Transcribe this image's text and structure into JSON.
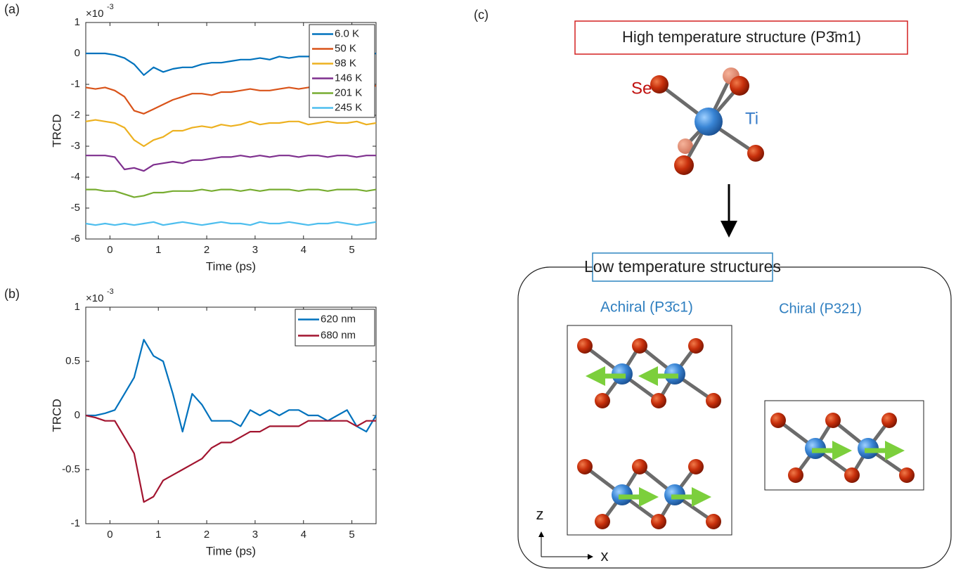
{
  "chart_data": [
    {
      "type": "line",
      "panel_label": "(a)",
      "xlabel": "Time (ps)",
      "ylabel": "TRCD",
      "y_multiplier": "×10",
      "y_multiplier_exponent": "-3",
      "x": [
        -0.5,
        -0.3,
        -0.1,
        0.1,
        0.3,
        0.5,
        0.7,
        0.9,
        1.1,
        1.3,
        1.5,
        1.7,
        1.9,
        2.1,
        2.3,
        2.5,
        2.7,
        2.9,
        3.1,
        3.3,
        3.5,
        3.7,
        3.9,
        4.1,
        4.3,
        4.5,
        4.7,
        4.9,
        5.1,
        5.3,
        5.5
      ],
      "xlim": [
        -0.5,
        5.5
      ],
      "xticks": [
        0,
        1,
        2,
        3,
        4,
        5
      ],
      "ylim": [
        -6,
        1
      ],
      "yticks": [
        1,
        0,
        -1,
        -2,
        -3,
        -4,
        -5,
        -6
      ],
      "legend": "upper right",
      "series": [
        {
          "name": "6.0 K",
          "color": "#0072BD",
          "values": [
            0,
            0,
            0,
            -0.05,
            -0.15,
            -0.35,
            -0.7,
            -0.45,
            -0.6,
            -0.5,
            -0.45,
            -0.45,
            -0.35,
            -0.3,
            -0.3,
            -0.25,
            -0.2,
            -0.2,
            -0.15,
            -0.2,
            -0.1,
            -0.15,
            -0.1,
            -0.1,
            -0.05,
            -0.1,
            -0.05,
            -0.05,
            0,
            -0.05,
            0
          ]
        },
        {
          "name": "50 K",
          "color": "#D95319",
          "values": [
            -1.1,
            -1.15,
            -1.1,
            -1.2,
            -1.4,
            -1.85,
            -1.95,
            -1.8,
            -1.65,
            -1.5,
            -1.4,
            -1.3,
            -1.3,
            -1.35,
            -1.25,
            -1.25,
            -1.2,
            -1.15,
            -1.2,
            -1.2,
            -1.15,
            -1.1,
            -1.15,
            -1.1,
            -1.05,
            -1.1,
            -1.0,
            -1.05,
            -1.0,
            -1.05,
            -1.05
          ]
        },
        {
          "name": "98 K",
          "color": "#EDB120",
          "values": [
            -2.2,
            -2.15,
            -2.2,
            -2.25,
            -2.4,
            -2.8,
            -3.0,
            -2.8,
            -2.7,
            -2.5,
            -2.5,
            -2.4,
            -2.35,
            -2.4,
            -2.3,
            -2.35,
            -2.3,
            -2.2,
            -2.3,
            -2.25,
            -2.25,
            -2.2,
            -2.2,
            -2.3,
            -2.25,
            -2.2,
            -2.25,
            -2.25,
            -2.2,
            -2.3,
            -2.25
          ]
        },
        {
          "name": "146 K",
          "color": "#7E2F8E",
          "values": [
            -3.3,
            -3.3,
            -3.3,
            -3.35,
            -3.75,
            -3.7,
            -3.8,
            -3.6,
            -3.55,
            -3.5,
            -3.55,
            -3.45,
            -3.45,
            -3.4,
            -3.35,
            -3.35,
            -3.3,
            -3.35,
            -3.3,
            -3.35,
            -3.3,
            -3.3,
            -3.35,
            -3.3,
            -3.3,
            -3.35,
            -3.3,
            -3.3,
            -3.35,
            -3.3,
            -3.3
          ]
        },
        {
          "name": "201 K",
          "color": "#77AC30",
          "values": [
            -4.4,
            -4.4,
            -4.45,
            -4.45,
            -4.55,
            -4.65,
            -4.6,
            -4.5,
            -4.5,
            -4.45,
            -4.45,
            -4.45,
            -4.4,
            -4.45,
            -4.4,
            -4.4,
            -4.45,
            -4.4,
            -4.45,
            -4.4,
            -4.4,
            -4.4,
            -4.45,
            -4.4,
            -4.4,
            -4.45,
            -4.4,
            -4.4,
            -4.4,
            -4.45,
            -4.4
          ]
        },
        {
          "name": "245 K",
          "color": "#4DBEEE",
          "values": [
            -5.5,
            -5.55,
            -5.5,
            -5.55,
            -5.5,
            -5.55,
            -5.5,
            -5.45,
            -5.55,
            -5.5,
            -5.45,
            -5.5,
            -5.55,
            -5.5,
            -5.45,
            -5.5,
            -5.5,
            -5.55,
            -5.45,
            -5.5,
            -5.5,
            -5.45,
            -5.5,
            -5.55,
            -5.5,
            -5.5,
            -5.45,
            -5.5,
            -5.55,
            -5.5,
            -5.45
          ]
        }
      ]
    },
    {
      "type": "line",
      "panel_label": "(b)",
      "xlabel": "Time (ps)",
      "ylabel": "TRCD",
      "y_multiplier": "×10",
      "y_multiplier_exponent": "-3",
      "x": [
        -0.5,
        -0.3,
        -0.1,
        0.1,
        0.3,
        0.5,
        0.7,
        0.9,
        1.1,
        1.3,
        1.5,
        1.7,
        1.9,
        2.1,
        2.3,
        2.5,
        2.7,
        2.9,
        3.1,
        3.3,
        3.5,
        3.7,
        3.9,
        4.1,
        4.3,
        4.5,
        4.7,
        4.9,
        5.1,
        5.3,
        5.5
      ],
      "xlim": [
        -0.5,
        5.5
      ],
      "xticks": [
        0,
        1,
        2,
        3,
        4,
        5
      ],
      "ylim": [
        -1,
        1
      ],
      "yticks": [
        1,
        0.5,
        0,
        -0.5,
        -1
      ],
      "legend": "upper right",
      "series": [
        {
          "name": "620 nm",
          "color": "#0072BD",
          "values": [
            0,
            0,
            0.02,
            0.05,
            0.2,
            0.35,
            0.7,
            0.55,
            0.5,
            0.2,
            -0.15,
            0.2,
            0.1,
            -0.05,
            -0.05,
            -0.05,
            -0.1,
            0.05,
            0,
            0.05,
            0,
            0.05,
            0.05,
            0,
            0,
            -0.05,
            0,
            0.05,
            -0.1,
            -0.15,
            0
          ]
        },
        {
          "name": "680 nm",
          "color": "#A2142F",
          "values": [
            0,
            -0.02,
            -0.05,
            -0.05,
            -0.2,
            -0.35,
            -0.8,
            -0.75,
            -0.6,
            -0.55,
            -0.5,
            -0.45,
            -0.4,
            -0.3,
            -0.25,
            -0.25,
            -0.2,
            -0.15,
            -0.15,
            -0.1,
            -0.1,
            -0.1,
            -0.1,
            -0.05,
            -0.05,
            -0.05,
            -0.05,
            -0.05,
            -0.1,
            -0.05,
            -0.05
          ]
        }
      ]
    }
  ],
  "diagram": {
    "panel_label": "(c)",
    "high_title": "High temperature structure (P3̄m1)",
    "se_label": "Se",
    "ti_label": "Ti",
    "low_title": "Low temperature structures",
    "achiral": "Achiral (P3̄c1)",
    "chiral": "Chiral (P321)",
    "axis_z": "z",
    "axis_x": "x"
  }
}
